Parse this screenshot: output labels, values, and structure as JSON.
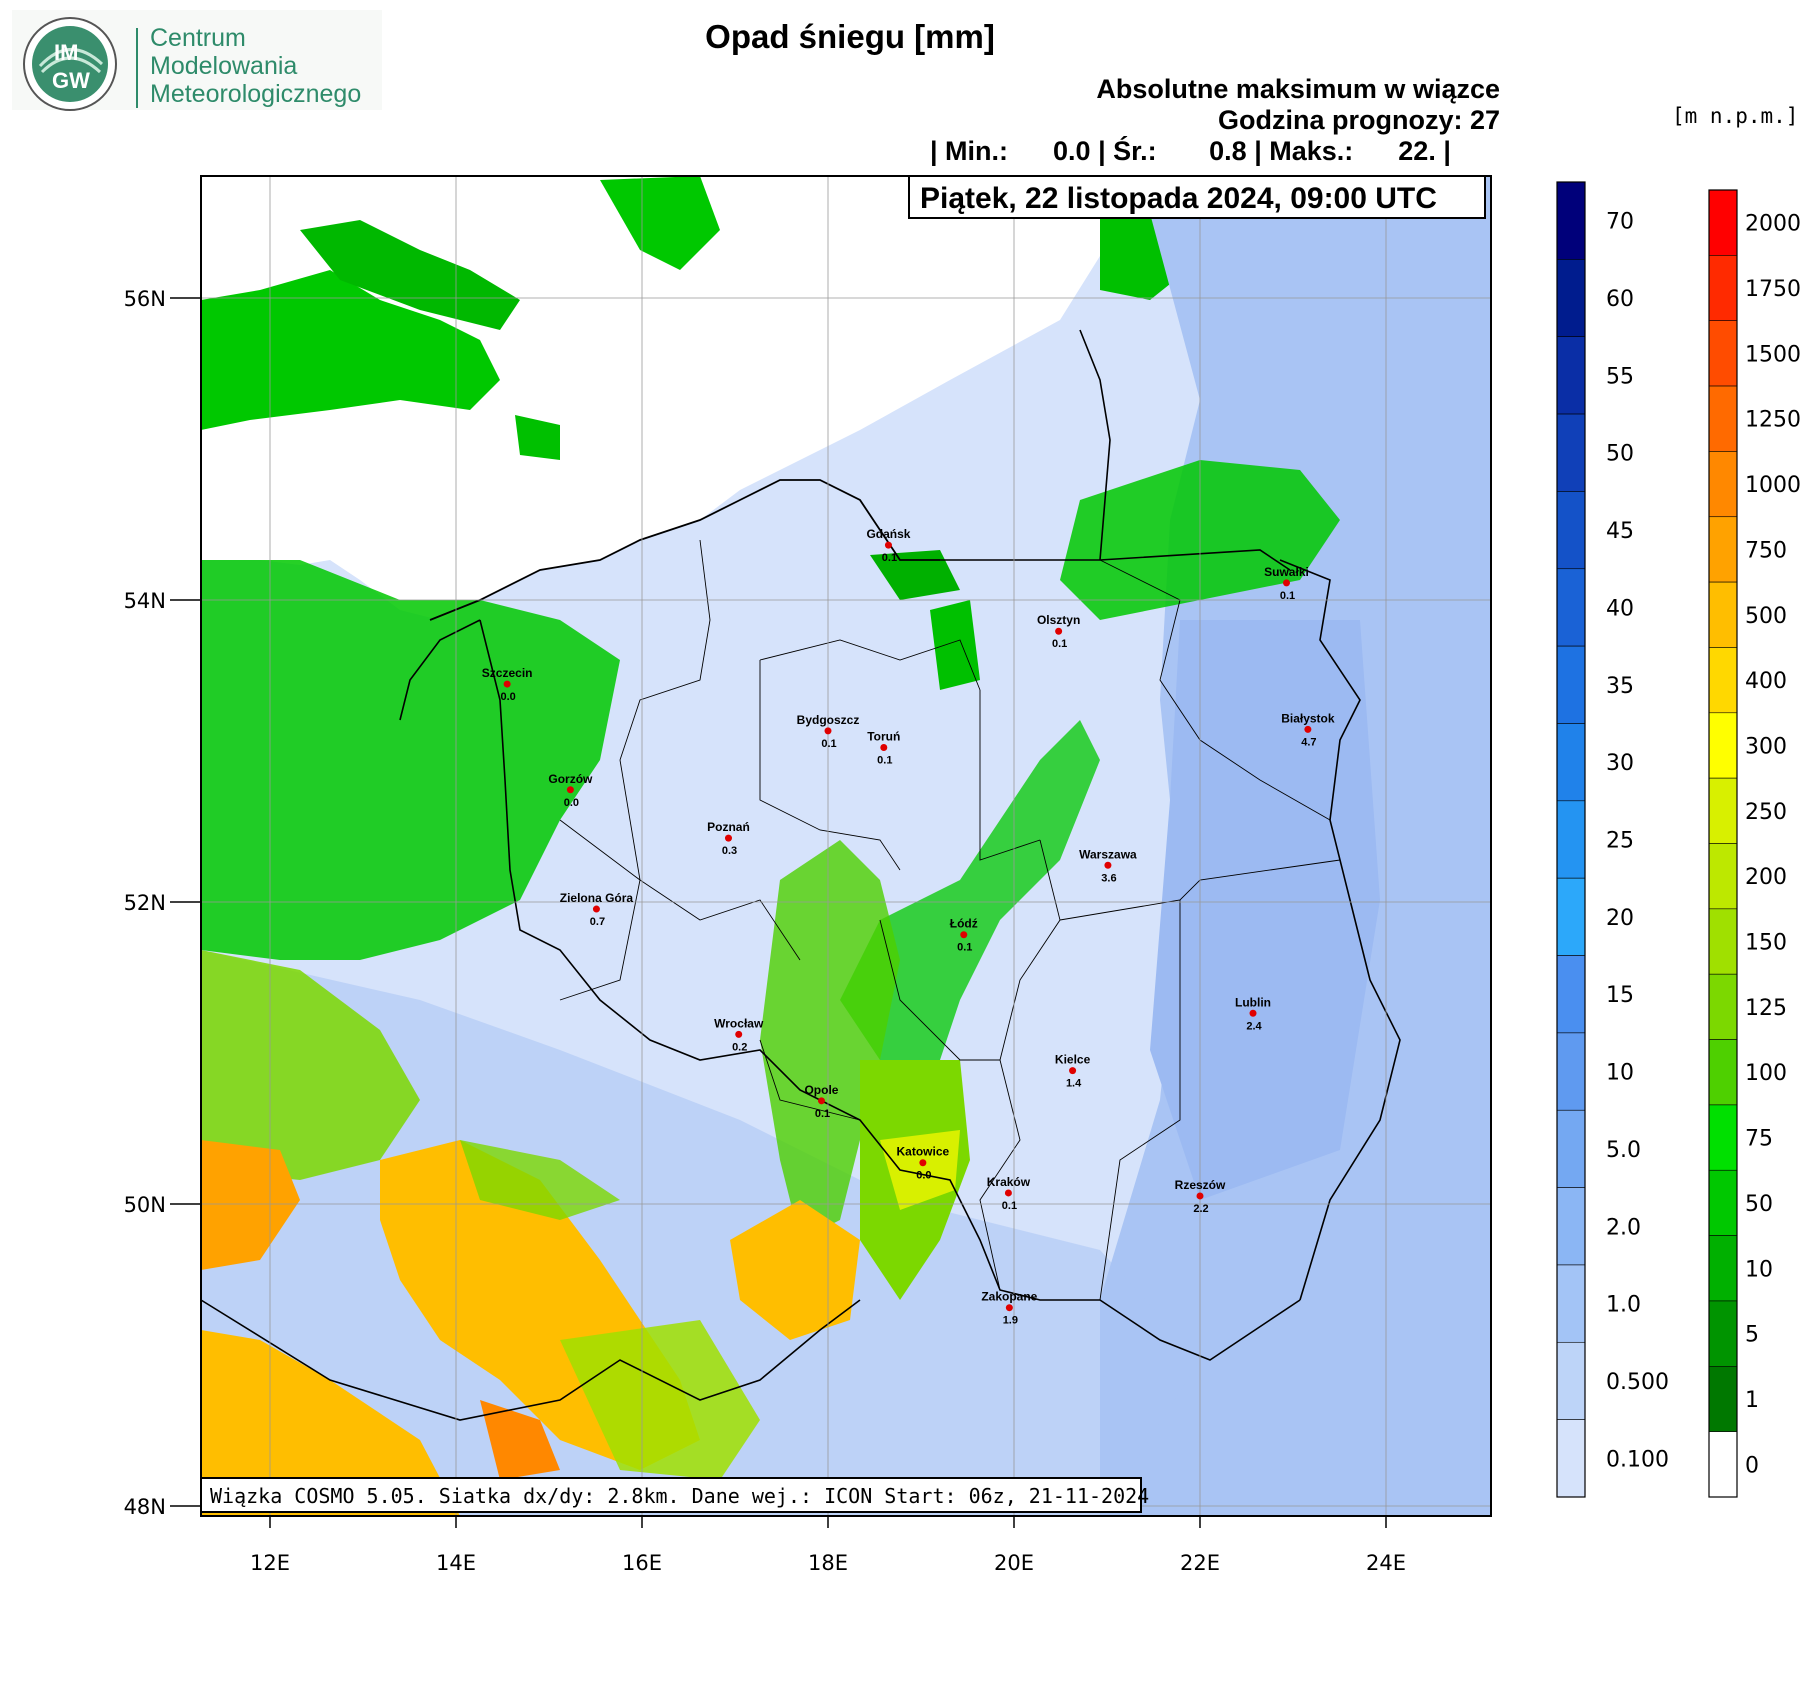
{
  "logo": {
    "badge_top": "IM",
    "badge_bottom": "GW",
    "line1": "Centrum",
    "line2": "Modelowania",
    "line3": "Meteorologicznego"
  },
  "header": {
    "title": "Opad śniegu [mm]",
    "subtitle": "Absolutne maksimum w wiązce",
    "forecast_hour": "Godzina prognozy: 27",
    "stats": "| Min.:      0.0 | Śr.:       0.8 | Maks.:      22. |",
    "date": "Piątek, 22 listopada 2024, 09:00 UTC",
    "terrain_unit": "[m n.p.m.]"
  },
  "footer": "Wiązka COSMO 5.05. Siatka dx/dy: 2.8km. Dane wej.: ICON Start: 06z, 21-11-2024",
  "axes": {
    "lat_labels": [
      "56N",
      "54N",
      "52N",
      "50N",
      "48N"
    ],
    "lon_labels": [
      "12E",
      "14E",
      "16E",
      "18E",
      "20E",
      "22E",
      "24E"
    ]
  },
  "legend_snow": {
    "labels": [
      "70",
      "60",
      "55",
      "50",
      "45",
      "40",
      "35",
      "30",
      "25",
      "20",
      "15",
      "10",
      "5.0",
      "2.0",
      "1.0",
      "0.500",
      "0.100"
    ],
    "colors": [
      "#00007a",
      "#001c8e",
      "#0a2ea6",
      "#1040b8",
      "#1452c8",
      "#1a62d6",
      "#1e72e2",
      "#2082ea",
      "#2494f2",
      "#2ca8fa",
      "#4a8ff0",
      "#5f9af0",
      "#74a8f2",
      "#8bb6f4",
      "#a3c4f6",
      "#bdd4f8",
      "#d6e3fb"
    ]
  },
  "legend_terrain": {
    "labels": [
      "2000",
      "1750",
      "1500",
      "1250",
      "1000",
      "750",
      "500",
      "400",
      "300",
      "250",
      "200",
      "150",
      "125",
      "100",
      "75",
      "50",
      "10",
      "5",
      "1",
      "0"
    ],
    "colors": [
      "#ff0000",
      "#ff2a00",
      "#ff4c00",
      "#ff6a00",
      "#ff8800",
      "#ffa200",
      "#ffbe00",
      "#ffd800",
      "#ffff00",
      "#d8f000",
      "#bde800",
      "#a0e000",
      "#7cd800",
      "#4ed000",
      "#00e000",
      "#00c800",
      "#00b000",
      "#009400",
      "#007800",
      "#ffffff"
    ]
  },
  "cities": [
    {
      "name": "Gdańsk",
      "value": "0.1",
      "lon": 18.65,
      "lat": 54.35
    },
    {
      "name": "Suwałki",
      "value": "0.1",
      "lon": 22.93,
      "lat": 54.1
    },
    {
      "name": "Olsztyn",
      "value": "0.1",
      "lon": 20.48,
      "lat": 53.78
    },
    {
      "name": "Szczecin",
      "value": "0.0",
      "lon": 14.55,
      "lat": 53.43
    },
    {
      "name": "Bydgoszcz",
      "value": "0.1",
      "lon": 18.0,
      "lat": 53.12
    },
    {
      "name": "Toruń",
      "value": "0.1",
      "lon": 18.6,
      "lat": 53.01
    },
    {
      "name": "Białystok",
      "value": "4.7",
      "lon": 23.16,
      "lat": 53.13
    },
    {
      "name": "Gorzów",
      "value": "0.0",
      "lon": 15.23,
      "lat": 52.73
    },
    {
      "name": "Poznań",
      "value": "0.3",
      "lon": 16.93,
      "lat": 52.41
    },
    {
      "name": "Warszawa",
      "value": "3.6",
      "lon": 21.01,
      "lat": 52.23
    },
    {
      "name": "Zielona Góra",
      "value": "0.7",
      "lon": 15.51,
      "lat": 51.94
    },
    {
      "name": "Łódź",
      "value": "0.1",
      "lon": 19.46,
      "lat": 51.77
    },
    {
      "name": "Lublin",
      "value": "2.4",
      "lon": 22.57,
      "lat": 51.25
    },
    {
      "name": "Wrocław",
      "value": "0.2",
      "lon": 17.04,
      "lat": 51.11
    },
    {
      "name": "Kielce",
      "value": "1.4",
      "lon": 20.63,
      "lat": 50.87
    },
    {
      "name": "Opole",
      "value": "0.1",
      "lon": 17.93,
      "lat": 50.67
    },
    {
      "name": "Katowice",
      "value": "0.0",
      "lon": 19.02,
      "lat": 50.26
    },
    {
      "name": "Kraków",
      "value": "0.1",
      "lon": 19.94,
      "lat": 50.06
    },
    {
      "name": "Rzeszów",
      "value": "2.2",
      "lon": 22.0,
      "lat": 50.04
    },
    {
      "name": "Zakopane",
      "value": "1.9",
      "lon": 19.95,
      "lat": 49.3
    }
  ]
}
